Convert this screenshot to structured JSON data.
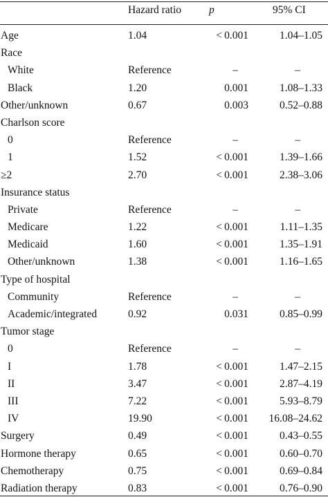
{
  "header": {
    "hazard_ratio": "Hazard ratio",
    "p": "p",
    "ci": "95% CI"
  },
  "rows": [
    {
      "label": "Age",
      "indent": false,
      "hr": "1.04",
      "p": "< 0.001",
      "ci": "1.04–1.05"
    },
    {
      "label": "Race",
      "indent": false,
      "hr": "",
      "p": "",
      "ci": ""
    },
    {
      "label": "White",
      "indent": true,
      "hr": "Reference",
      "p": "–",
      "ci": "–"
    },
    {
      "label": "Black",
      "indent": true,
      "hr": "1.20",
      "p": "0.001",
      "ci": "1.08–1.33"
    },
    {
      "label": "Other/unknown",
      "indent": false,
      "hr": "0.67",
      "p": "0.003",
      "ci": "0.52–0.88"
    },
    {
      "label": "Charlson score",
      "indent": false,
      "hr": "",
      "p": "",
      "ci": ""
    },
    {
      "label": "0",
      "indent": true,
      "hr": "Reference",
      "p": "–",
      "ci": "–"
    },
    {
      "label": "1",
      "indent": true,
      "hr": "1.52",
      "p": "< 0.001",
      "ci": "1.39–1.66"
    },
    {
      "label": "≥2",
      "indent": false,
      "hr": "2.70",
      "p": "< 0.001",
      "ci": "2.38–3.06"
    },
    {
      "label": "Insurance status",
      "indent": false,
      "hr": "",
      "p": "",
      "ci": ""
    },
    {
      "label": "Private",
      "indent": true,
      "hr": "Reference",
      "p": "–",
      "ci": "–"
    },
    {
      "label": "Medicare",
      "indent": true,
      "hr": "1.22",
      "p": "< 0.001",
      "ci": "1.11–1.35"
    },
    {
      "label": "Medicaid",
      "indent": true,
      "hr": "1.60",
      "p": "< 0.001",
      "ci": "1.35–1.91"
    },
    {
      "label": "Other/unknown",
      "indent": true,
      "hr": "1.38",
      "p": "< 0.001",
      "ci": "1.16–1.65"
    },
    {
      "label": "Type of hospital",
      "indent": false,
      "hr": "",
      "p": "",
      "ci": ""
    },
    {
      "label": "Community",
      "indent": true,
      "hr": "Reference",
      "p": "–",
      "ci": "–"
    },
    {
      "label": "Academic/integrated",
      "indent": true,
      "hr": "0.92",
      "p": "0.031",
      "ci": "0.85–0.99"
    },
    {
      "label": "Tumor stage",
      "indent": false,
      "hr": "",
      "p": "",
      "ci": ""
    },
    {
      "label": "0",
      "indent": true,
      "hr": "Reference",
      "p": "–",
      "ci": "–"
    },
    {
      "label": "I",
      "indent": true,
      "hr": "1.78",
      "p": "< 0.001",
      "ci": "1.47–2.15"
    },
    {
      "label": "II",
      "indent": true,
      "hr": "3.47",
      "p": "< 0.001",
      "ci": "2.87–4.19"
    },
    {
      "label": "III",
      "indent": true,
      "hr": "7.22",
      "p": "< 0.001",
      "ci": "5.93–8.79"
    },
    {
      "label": "IV",
      "indent": true,
      "hr": "19.90",
      "p": "< 0.001",
      "ci": "16.08–24.62"
    },
    {
      "label": "Surgery",
      "indent": false,
      "hr": "0.49",
      "p": "< 0.001",
      "ci": "0.43–0.55"
    },
    {
      "label": "Hormone therapy",
      "indent": false,
      "hr": "0.65",
      "p": "< 0.001",
      "ci": "0.60–0.70"
    },
    {
      "label": "Chemotherapy",
      "indent": false,
      "hr": "0.75",
      "p": "< 0.001",
      "ci": "0.69–0.84"
    },
    {
      "label": "Radiation therapy",
      "indent": false,
      "hr": "0.83",
      "p": "< 0.001",
      "ci": "0.76–0.90"
    }
  ]
}
